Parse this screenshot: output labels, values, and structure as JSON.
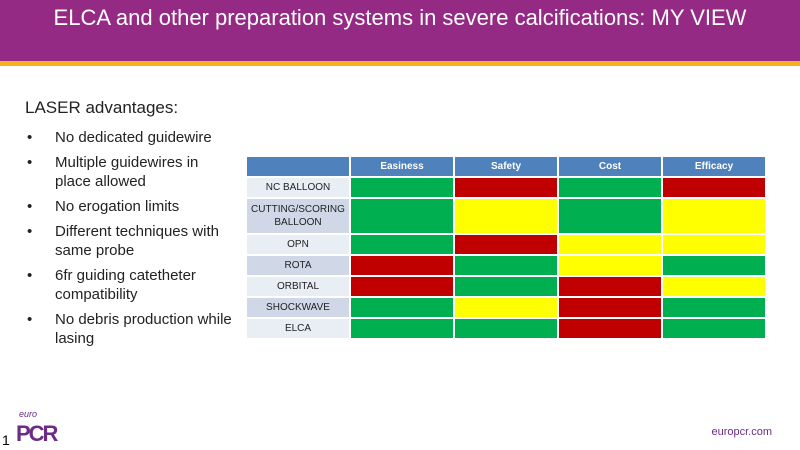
{
  "title": "ELCA and other preparation systems in severe calcifications: MY VIEW",
  "heading": "LASER advantages:",
  "bullets": [
    "No dedicated guidewire",
    "Multiple guidewires in place allowed",
    "No erogation limits",
    "Different techniques with same probe",
    "6fr guiding catetheter compatibility",
    "No debris production while lasing"
  ],
  "table": {
    "columns": [
      "Easiness",
      "Safety",
      "Cost",
      "Efficacy"
    ],
    "rows": [
      {
        "label": "NC BALLOON",
        "ratings": [
          "green",
          "red",
          "green",
          "red"
        ]
      },
      {
        "label": "CUTTING/SCORING BALLOON",
        "ratings": [
          "green",
          "yellow",
          "green",
          "yellow"
        ]
      },
      {
        "label": "OPN",
        "ratings": [
          "green",
          "red",
          "yellow",
          "yellow"
        ]
      },
      {
        "label": "ROTA",
        "ratings": [
          "red",
          "green",
          "yellow",
          "green"
        ]
      },
      {
        "label": "ORBITAL",
        "ratings": [
          "red",
          "green",
          "red",
          "yellow"
        ]
      },
      {
        "label": "SHOCKWAVE",
        "ratings": [
          "green",
          "yellow",
          "red",
          "green"
        ]
      },
      {
        "label": "ELCA",
        "ratings": [
          "green",
          "green",
          "red",
          "green"
        ]
      }
    ]
  },
  "colors": {
    "green": "#00b050",
    "red": "#c00000",
    "yellow": "#ffff00",
    "header": "#4f81bd",
    "titlebar": "#952a84"
  },
  "footer": {
    "logo_euro": "euro",
    "logo_pcr": "PCR",
    "page": "1",
    "url": "europcr.com"
  }
}
